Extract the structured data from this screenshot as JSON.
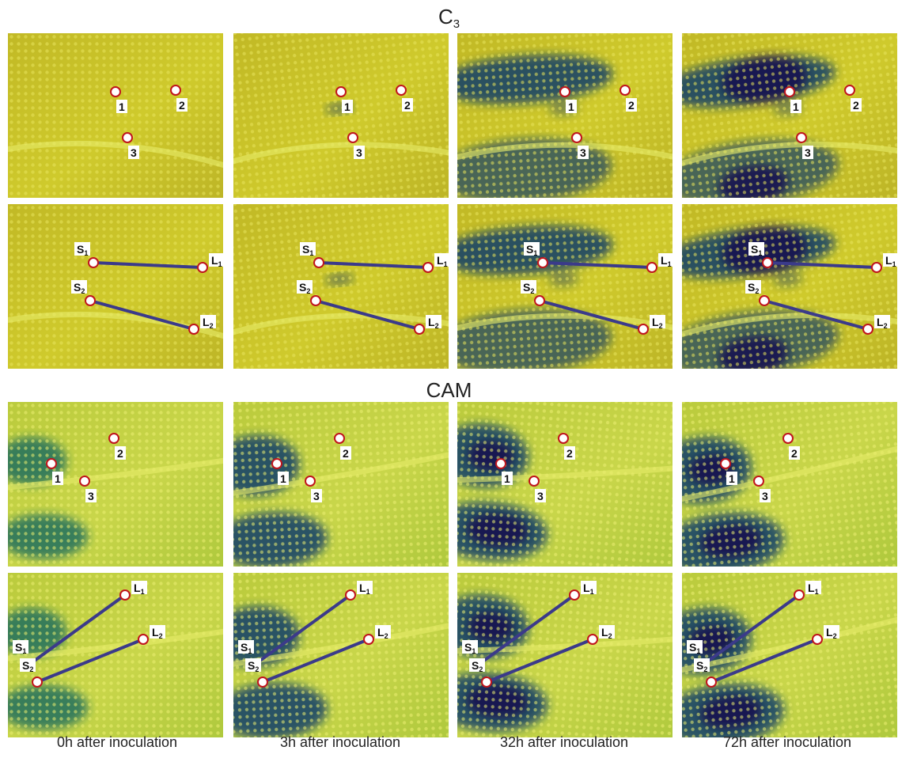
{
  "sections": {
    "c3": {
      "title": "C",
      "subscript": "3"
    },
    "cam": {
      "title": "CAM"
    }
  },
  "point_labels": [
    "1",
    "2",
    "3"
  ],
  "line_labels": {
    "s1": {
      "letter": "S",
      "sub": "1"
    },
    "l1": {
      "letter": "L",
      "sub": "1"
    },
    "s2": {
      "letter": "S",
      "sub": "2"
    },
    "l2": {
      "letter": "L",
      "sub": "2"
    }
  },
  "columns": [
    {
      "caption": "0h after inoculation"
    },
    {
      "caption": "3h after inoculation"
    },
    {
      "caption": "32h after inoculation"
    },
    {
      "caption": "72h after inoculation"
    }
  ],
  "colors": {
    "leaf_yellow": "#c8c81e",
    "stain_blue": "#103c6a",
    "lesion_dark": "#1a1250",
    "line": "#3b3a8a",
    "marker_ring": "#c0141c"
  }
}
